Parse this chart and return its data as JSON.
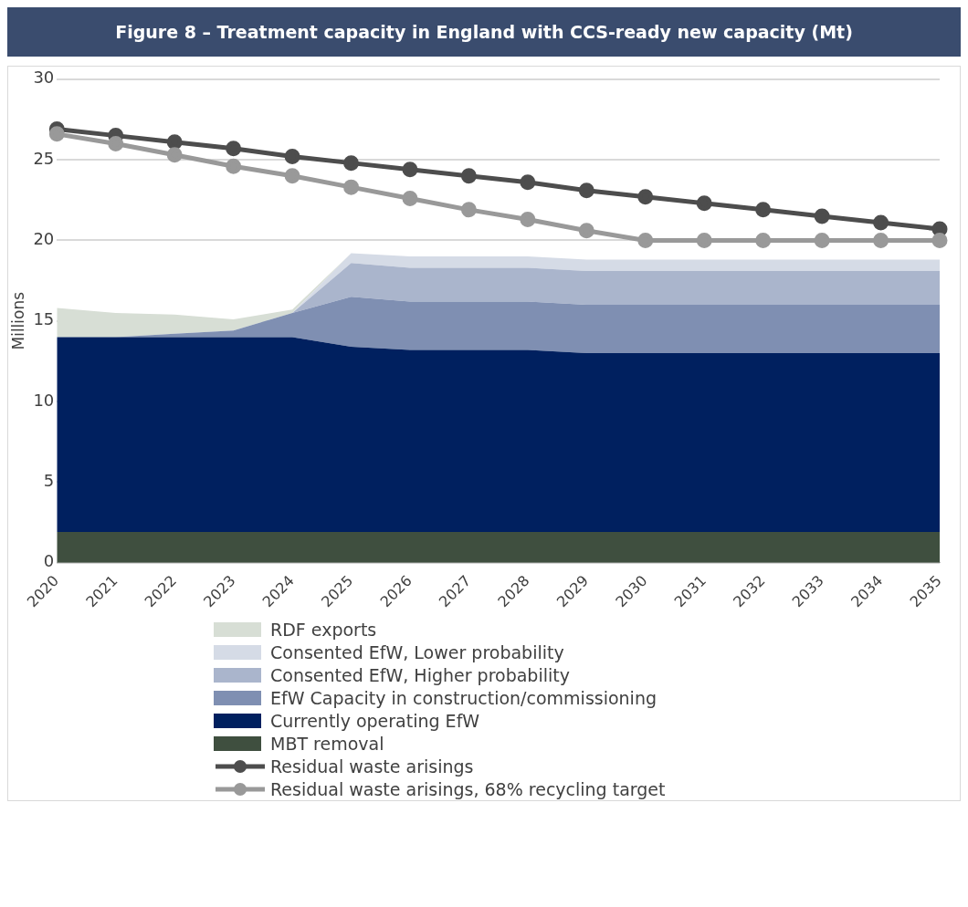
{
  "chart_data": {
    "type": "area",
    "title": "Figure 8 – Treatment capacity in England with CCS-ready new capacity (Mt)",
    "ylabel": "Millions",
    "categories": [
      "2020",
      "2021",
      "2022",
      "2023",
      "2024",
      "2025",
      "2026",
      "2027",
      "2028",
      "2029",
      "2030",
      "2031",
      "2032",
      "2033",
      "2034",
      "2035"
    ],
    "stacked": true,
    "ylim": [
      0,
      30
    ],
    "yticks": [
      0,
      5,
      10,
      15,
      20,
      25,
      30
    ],
    "grid": "y",
    "legend": "bottom",
    "series": [
      {
        "name": "MBT removal",
        "color": "#3f4f3f",
        "values": [
          1.9,
          1.9,
          1.9,
          1.9,
          1.9,
          1.9,
          1.9,
          1.9,
          1.9,
          1.9,
          1.9,
          1.9,
          1.9,
          1.9,
          1.9,
          1.9
        ]
      },
      {
        "name": "Currently operating EfW",
        "color": "#00205f",
        "values": [
          12.1,
          12.1,
          12.1,
          12.1,
          12.1,
          11.5,
          11.3,
          11.3,
          11.3,
          11.1,
          11.1,
          11.1,
          11.1,
          11.1,
          11.1,
          11.1
        ]
      },
      {
        "name": "EfW Capacity in construction/commissioning",
        "color": "#7f8fb2",
        "values": [
          0,
          0,
          0.2,
          0.4,
          1.5,
          3.1,
          3.0,
          3.0,
          3.0,
          3.0,
          3.0,
          3.0,
          3.0,
          3.0,
          3.0,
          3.0
        ]
      },
      {
        "name": "Consented EfW, Higher probability",
        "color": "#aab5cc",
        "values": [
          0,
          0,
          0,
          0,
          0,
          2.1,
          2.1,
          2.1,
          2.1,
          2.1,
          2.1,
          2.1,
          2.1,
          2.1,
          2.1,
          2.1
        ]
      },
      {
        "name": "Consented EfW, Lower probability",
        "color": "#d5dbe6",
        "values": [
          0,
          0,
          0,
          0,
          0,
          0.6,
          0.7,
          0.7,
          0.7,
          0.7,
          0.7,
          0.7,
          0.7,
          0.7,
          0.7,
          0.7
        ]
      },
      {
        "name": "RDF exports",
        "color": "#d7ded5",
        "values": [
          1.8,
          1.5,
          1.2,
          0.7,
          0.2,
          0,
          null,
          null,
          null,
          null,
          null,
          null,
          null,
          null,
          null,
          null
        ]
      },
      {
        "name": "Residual waste arisings",
        "type": "line",
        "marker": "circle",
        "color": "#4d4d4d",
        "values": [
          26.9,
          26.5,
          26.1,
          25.7,
          25.2,
          24.8,
          24.4,
          24.0,
          23.6,
          23.1,
          22.7,
          22.3,
          21.9,
          21.5,
          21.1,
          20.7
        ]
      },
      {
        "name": "Residual waste arisings, 68% recycling target",
        "type": "line",
        "marker": "circle",
        "color": "#999999",
        "values": [
          26.6,
          26.0,
          25.3,
          24.6,
          24.0,
          23.3,
          22.6,
          21.9,
          21.3,
          20.6,
          20,
          20,
          20,
          20,
          20,
          20
        ]
      }
    ]
  }
}
